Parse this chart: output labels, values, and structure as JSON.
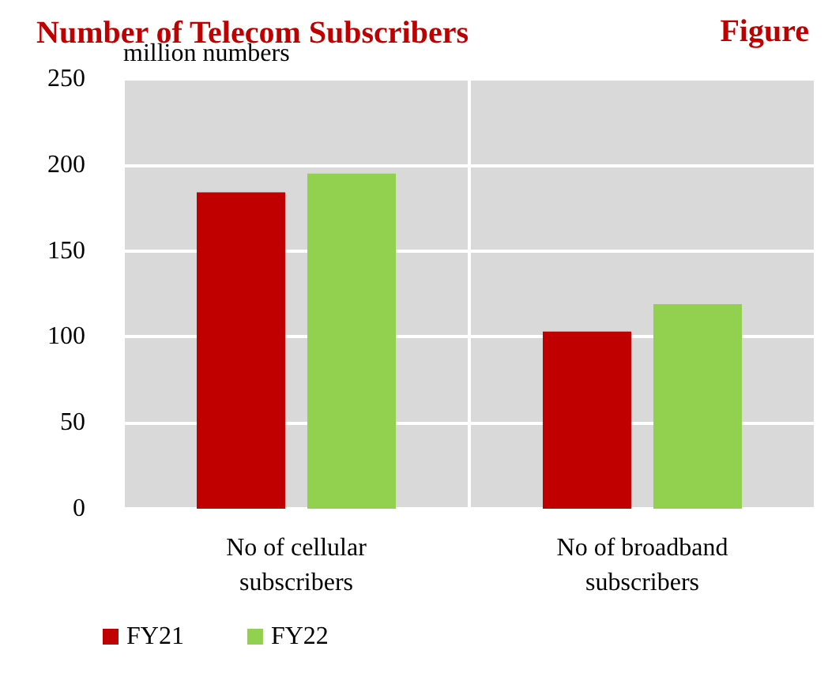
{
  "chart_data": {
    "type": "bar",
    "title": "Number of Telecom Subscribers",
    "ylabel": "million numbers",
    "annotations": [
      "Figure"
    ],
    "categories": [
      "No of cellular\nsubscribers",
      "No of broadband\nsubscribers"
    ],
    "series": [
      {
        "name": "FY21",
        "color": "#c00000",
        "values": [
          184,
          103
        ]
      },
      {
        "name": "FY22",
        "color": "#92d050",
        "values": [
          195,
          119
        ]
      }
    ],
    "ylim": [
      0,
      250
    ],
    "yticks": [
      0,
      50,
      100,
      150,
      200,
      250
    ],
    "grid": true,
    "legend": "bottom left"
  }
}
